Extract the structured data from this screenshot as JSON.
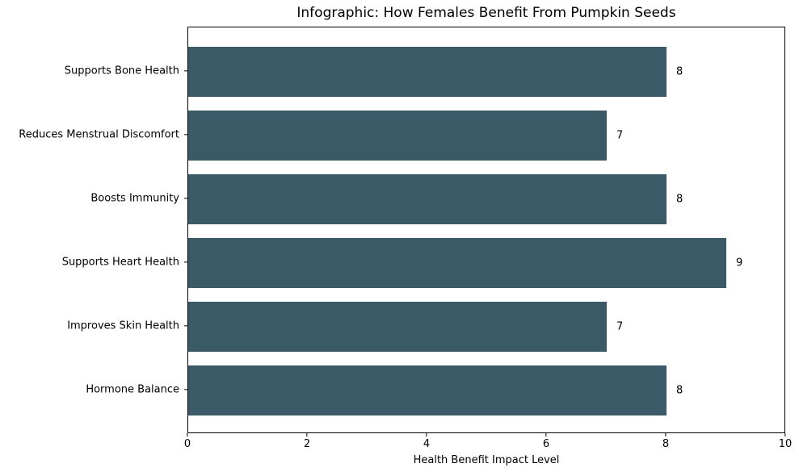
{
  "chart_data": {
    "type": "bar",
    "orientation": "horizontal",
    "title": "Infographic: How Females Benefit From Pumpkin Seeds",
    "xlabel": "Health Benefit Impact Level",
    "ylabel": "",
    "categories": [
      "Supports Bone Health",
      "Reduces Menstrual Discomfort",
      "Boosts Immunity",
      "Supports Heart Health",
      "Improves Skin Health",
      "Hormone Balance"
    ],
    "values": [
      8,
      7,
      8,
      9,
      7,
      8
    ],
    "bar_labels": [
      "8",
      "7",
      "8",
      "9",
      "7",
      "8"
    ],
    "xlim": [
      0,
      10
    ],
    "xticks": [
      "0",
      "2",
      "4",
      "6",
      "8",
      "10"
    ],
    "xtick_values": [
      0,
      2,
      4,
      6,
      8,
      10
    ],
    "bar_color": "#3a5a68",
    "text_color": "#000000",
    "background_color": "#ffffff",
    "grid": false,
    "legend": null
  }
}
